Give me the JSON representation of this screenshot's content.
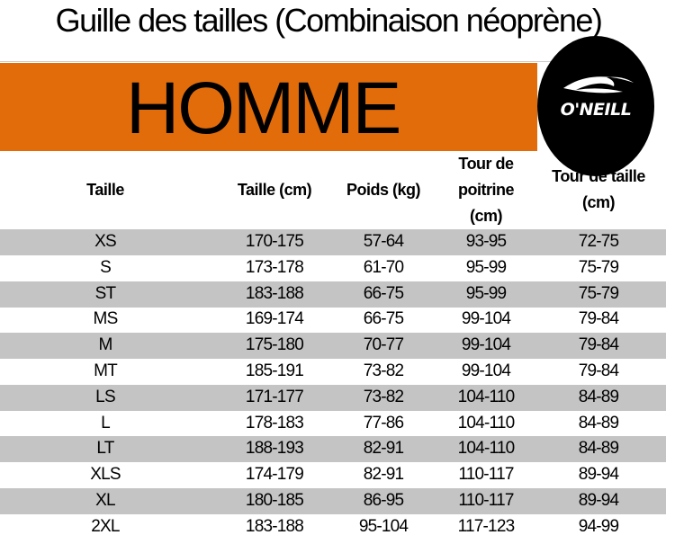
{
  "title": "Guille des tailles (Combinaison néoprène)",
  "banner": "HOMME",
  "brand": {
    "logo_text": "O'NEILL",
    "accent": "#E36C0A",
    "stripe": "#c4c4c4"
  },
  "headers": [
    "Taille",
    "Taille (cm)",
    "Poids (kg)",
    "Tour de poitrine (cm)",
    "Tour de taille (cm)"
  ],
  "rows": [
    [
      "XS",
      "170-175",
      "57-64",
      "93-95",
      "72-75"
    ],
    [
      "S",
      "173-178",
      "61-70",
      "95-99",
      "75-79"
    ],
    [
      "ST",
      "183-188",
      "66-75",
      "95-99",
      "75-79"
    ],
    [
      "MS",
      "169-174",
      "66-75",
      "99-104",
      "79-84"
    ],
    [
      "M",
      "175-180",
      "70-77",
      "99-104",
      "79-84"
    ],
    [
      "MT",
      "185-191",
      "73-82",
      "99-104",
      "79-84"
    ],
    [
      "LS",
      "171-177",
      "73-82",
      "104-110",
      "84-89"
    ],
    [
      "L",
      "178-183",
      "77-86",
      "104-110",
      "84-89"
    ],
    [
      "LT",
      "188-193",
      "82-91",
      "104-110",
      "84-89"
    ],
    [
      "XLS",
      "174-179",
      "82-91",
      "110-117",
      "89-94"
    ],
    [
      "XL",
      "180-185",
      "86-95",
      "110-117",
      "89-94"
    ],
    [
      "2XL",
      "183-188",
      "95-104",
      "117-123",
      "94-99"
    ]
  ]
}
